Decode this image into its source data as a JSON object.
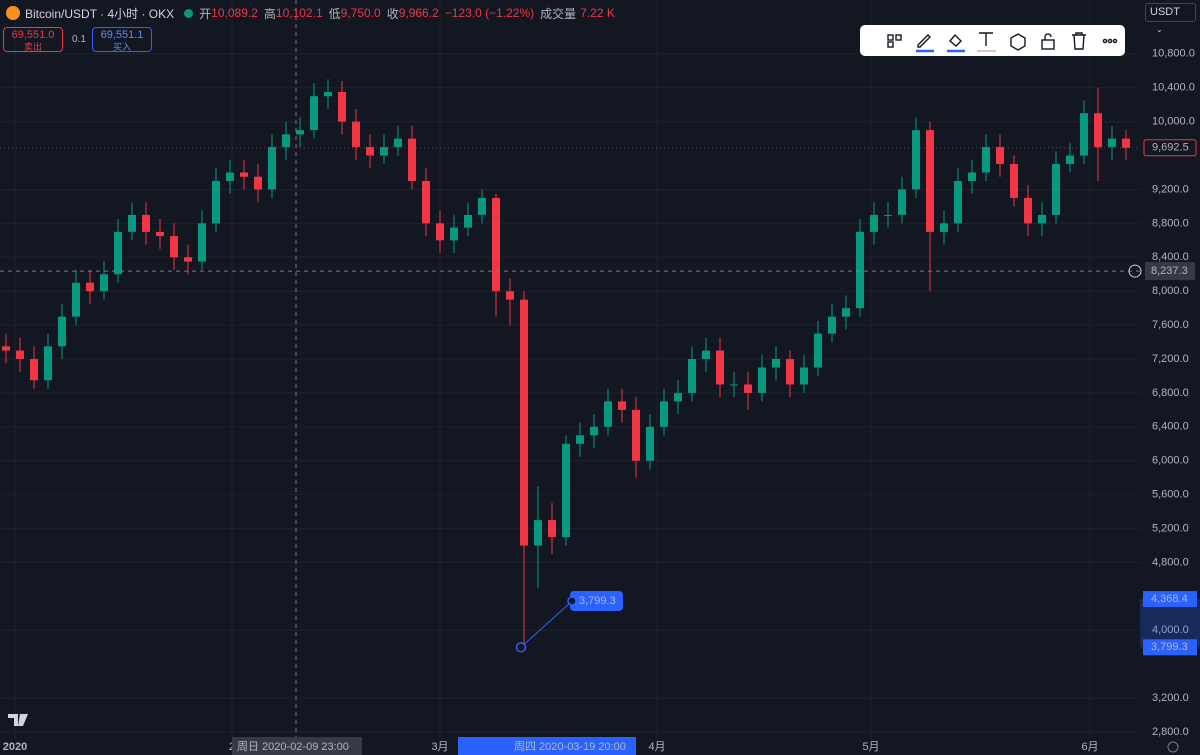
{
  "header": {
    "symbol": "Bitcoin/USDT · 4小时 · OKX",
    "open_label": "开",
    "open": "10,089.2",
    "high_label": "高",
    "high": "10,102.1",
    "low_label": "低",
    "low": "9,750.0",
    "close_label": "收",
    "close": "9,966.2",
    "change": "−123.0 (−1.22%)",
    "volume_label": "成交量",
    "volume": "7.22 K"
  },
  "trade": {
    "sell_price": "69,551.0",
    "sell_label": "卖出",
    "quantity": "0.1",
    "buy_price": "69,551.1",
    "buy_label": "买入"
  },
  "toolbar": {
    "currency": "USDT"
  },
  "chart_data": {
    "type": "candlestick",
    "up_color": "#089981",
    "down_color": "#f23645",
    "open": [
      7350,
      7300,
      7200,
      6950,
      7350,
      7700,
      8100,
      8000,
      8200,
      8700,
      8900,
      8700,
      8650,
      8400,
      8350,
      8800,
      9300,
      9400,
      9350,
      9200,
      9700,
      9850,
      9900,
      10300,
      10350,
      10000,
      9700,
      9600,
      9700,
      9800,
      9300,
      8800,
      8600,
      8750,
      8900,
      9100,
      8000,
      7900,
      5000,
      5300,
      5100,
      6200,
      6300,
      6400,
      6700,
      6600,
      6000,
      6400,
      6700,
      6800,
      7200,
      7300,
      6900,
      6900,
      6800,
      7100,
      7200,
      6900,
      7100,
      7500,
      7700,
      7800,
      8700,
      8900,
      8900,
      9200,
      9900,
      8700,
      8800,
      9300,
      9400,
      9700,
      9500,
      9100,
      8800,
      8900,
      9500,
      9600,
      10100,
      9700,
      9800
    ],
    "high": [
      7500,
      7450,
      7350,
      7500,
      7850,
      8250,
      8250,
      8350,
      8850,
      9050,
      9050,
      8850,
      8800,
      8550,
      8950,
      9450,
      9550,
      9550,
      9500,
      9850,
      10000,
      10050,
      10450,
      10500,
      10480,
      10150,
      9850,
      9850,
      9950,
      9950,
      9450,
      8950,
      8900,
      9050,
      9200,
      9150,
      8150,
      8000,
      5700,
      5500,
      6300,
      6450,
      6550,
      6850,
      6850,
      6750,
      6550,
      6850,
      6950,
      7350,
      7450,
      7450,
      7050,
      7050,
      7250,
      7350,
      7300,
      7250,
      7650,
      7850,
      7950,
      8850,
      9050,
      9050,
      9350,
      10050,
      10000,
      8950,
      9450,
      9550,
      9850,
      9850,
      9600,
      9250,
      9050,
      9650,
      9750,
      10250,
      10400,
      9950,
      9900
    ],
    "low": [
      7150,
      7050,
      6850,
      6850,
      7200,
      7600,
      7850,
      7900,
      8100,
      8600,
      8550,
      8500,
      8250,
      8200,
      8250,
      8700,
      9150,
      9200,
      9050,
      9100,
      9550,
      9700,
      9800,
      10150,
      9850,
      9550,
      9450,
      9500,
      9600,
      9200,
      8650,
      8450,
      8450,
      8650,
      8800,
      7700,
      7600,
      3799.3,
      4500,
      4900,
      5000,
      6050,
      6150,
      6300,
      6450,
      5800,
      5900,
      6300,
      6550,
      6700,
      7050,
      6750,
      6750,
      6600,
      6700,
      6950,
      6750,
      6800,
      7000,
      7400,
      7550,
      7700,
      8550,
      8750,
      8800,
      9100,
      8000,
      8550,
      8700,
      9150,
      9300,
      9350,
      9000,
      8650,
      8650,
      8800,
      9400,
      9500,
      9300,
      9550,
      9550
    ],
    "close": [
      7300,
      7200,
      6950,
      7350,
      7700,
      8100,
      8000,
      8200,
      8700,
      8900,
      8700,
      8650,
      8400,
      8350,
      8800,
      9300,
      9400,
      9350,
      9200,
      9700,
      9850,
      9900,
      10300,
      10350,
      10000,
      9700,
      9600,
      9700,
      9800,
      9300,
      8800,
      8600,
      8750,
      8900,
      9100,
      8000,
      7900,
      5000,
      5300,
      5100,
      6200,
      6300,
      6400,
      6700,
      6600,
      6000,
      6400,
      6700,
      6800,
      7200,
      7300,
      6900,
      6900,
      6800,
      7100,
      7200,
      6900,
      7100,
      7500,
      7700,
      7800,
      8700,
      8900,
      8900,
      9200,
      9900,
      8700,
      8800,
      9300,
      9400,
      9700,
      9500,
      9100,
      8800,
      8900,
      9500,
      9600,
      10100,
      9700,
      9800,
      9692.5
    ],
    "ylim": [
      2706,
      11435
    ],
    "yticks": [
      {
        "value": 10800,
        "label": "10,800.0"
      },
      {
        "value": 10400,
        "label": "10,400.0"
      },
      {
        "value": 10000,
        "label": "10,000.0"
      },
      {
        "value": 9200,
        "label": "9,200.0"
      },
      {
        "value": 8800,
        "label": "8,800.0"
      },
      {
        "value": 8400,
        "label": "8,400.0"
      },
      {
        "value": 8000,
        "label": "8,000.0"
      },
      {
        "value": 7600,
        "label": "7,600.0"
      },
      {
        "value": 7200,
        "label": "7,200.0"
      },
      {
        "value": 6800,
        "label": "6,800.0"
      },
      {
        "value": 6400,
        "label": "6,400.0"
      },
      {
        "value": 6000,
        "label": "6,000.0"
      },
      {
        "value": 5600,
        "label": "5,600.0"
      },
      {
        "value": 5200,
        "label": "5,200.0"
      },
      {
        "value": 4800,
        "label": "4,800.0"
      },
      {
        "value": 4000,
        "label": "4,000.0"
      },
      {
        "value": 3200,
        "label": "3,200.0"
      },
      {
        "value": 2800,
        "label": "2,800.0"
      }
    ],
    "xticks": [
      "2020",
      "2",
      "3月",
      "4月",
      "5月",
      "6月"
    ],
    "grid": true,
    "last_price": {
      "value": 9692.5,
      "label": "9,692.5"
    },
    "crosshair": {
      "price": {
        "value": 8237.3,
        "label": "8,237.3"
      },
      "time": "周日 2020-02-09 23:00"
    },
    "selection": {
      "time": "周四 2020-03-19 20:00",
      "high": {
        "value": 4368.4,
        "label": "4,368.4"
      },
      "low": {
        "value": 3799.3,
        "label": "3,799.3"
      }
    },
    "annotation": {
      "value": 3799.3,
      "label": "3,799.3"
    }
  }
}
